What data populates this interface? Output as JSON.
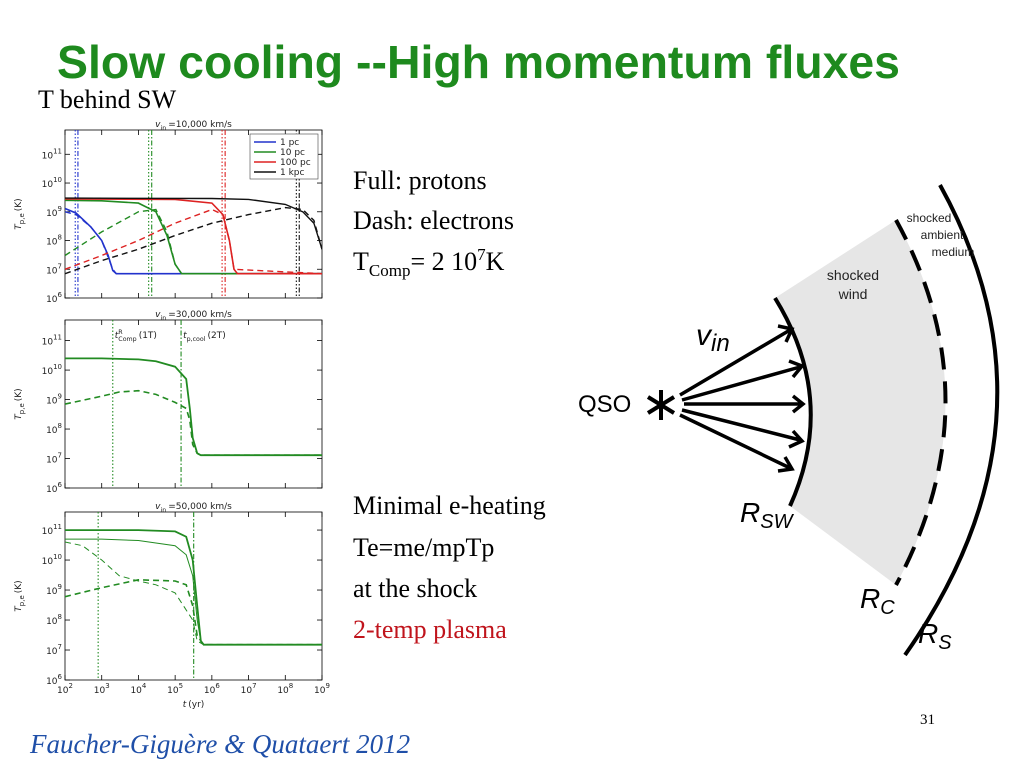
{
  "title": "Slow cooling --High momentum fluxes",
  "subtitle": "T behind SW",
  "chart_data": [
    {
      "type": "line",
      "xscale": "log",
      "yscale": "log",
      "title": {
        "symbol": "v",
        "subscript": "in",
        "text": "=10,000 km/s"
      },
      "ylabel": {
        "symbol": "T",
        "subscript": "p,e",
        "text": "(K)"
      },
      "xlim": [
        100,
        1000000000.0
      ],
      "ylim": [
        1000000.0,
        700000000000.0
      ],
      "xticks": [
        {
          "value": 100,
          "label": "10",
          "exponent": "2"
        },
        {
          "value": 1000,
          "label": "10",
          "exponent": "3"
        },
        {
          "value": 10000,
          "label": "10",
          "exponent": "4"
        },
        {
          "value": 100000,
          "label": "10",
          "exponent": "5"
        },
        {
          "value": 1000000,
          "label": "10",
          "exponent": "6"
        },
        {
          "value": 10000000,
          "label": "10",
          "exponent": "7"
        },
        {
          "value": 100000000,
          "label": "10",
          "exponent": "8"
        },
        {
          "value": 1000000000,
          "label": "10",
          "exponent": "9"
        }
      ],
      "show_xtick_labels": false,
      "yticks": [
        {
          "value": 1000000,
          "label": "10",
          "exponent": "6"
        },
        {
          "value": 10000000,
          "label": "10",
          "exponent": "7"
        },
        {
          "value": 100000000,
          "label": "10",
          "exponent": "8"
        },
        {
          "value": 1000000000,
          "label": "10",
          "exponent": "9"
        },
        {
          "value": 10000000000,
          "label": "10",
          "exponent": "10"
        },
        {
          "value": 100000000000,
          "label": "10",
          "exponent": "11"
        }
      ],
      "legend": "upper right",
      "series": [
        {
          "name": "1 pc",
          "color": "#2233cc",
          "style": "solid",
          "width": 1.6,
          "x": [
            100,
            200,
            500,
            1000,
            1500,
            2000,
            2500,
            1000000000.0
          ],
          "values": [
            1300000000.0,
            900000000.0,
            300000000.0,
            100000000.0,
            30000000.0,
            9000000.0,
            7000000.0,
            7000000.0
          ]
        },
        {
          "color": "#2233cc",
          "style": "dashed",
          "width": 1.4,
          "x": [
            100,
            200,
            500,
            1000,
            2000,
            2500,
            1000000000.0
          ],
          "values": [
            1000000000.0,
            800000000.0,
            300000000.0,
            100000000.0,
            10000000.0,
            7000000.0,
            7000000.0
          ]
        },
        {
          "name": "10 pc",
          "color": "#228b22",
          "style": "solid",
          "width": 1.6,
          "x": [
            100,
            1000,
            10000,
            30000,
            60000,
            100000,
            150000,
            200000,
            1000000000.0
          ],
          "values": [
            2500000000.0,
            2400000000.0,
            2000000000.0,
            1000000000.0,
            150000000.0,
            15000000.0,
            7000000.0,
            7000000.0,
            7000000.0
          ]
        },
        {
          "color": "#228b22",
          "style": "dashed",
          "width": 1.4,
          "x": [
            100,
            1000,
            10000,
            30000,
            60000,
            100000,
            150000,
            1000000000.0
          ],
          "values": [
            30000000.0,
            200000000.0,
            1000000000.0,
            1200000000.0,
            200000000.0,
            15000000.0,
            7000000.0,
            7000000.0
          ]
        },
        {
          "name": "100 pc",
          "color": "#dd2222",
          "style": "solid",
          "width": 1.6,
          "x": [
            100,
            100000,
            1000000,
            2000000,
            3000000,
            4000000,
            5000000,
            1000000000.0
          ],
          "values": [
            2800000000.0,
            2700000000.0,
            2000000000.0,
            800000000.0,
            100000000.0,
            10000000.0,
            7000000.0,
            7000000.0
          ]
        },
        {
          "color": "#dd2222",
          "style": "dashed",
          "width": 1.4,
          "x": [
            100,
            1000,
            10000,
            100000,
            1000000,
            2000000,
            3000000,
            4000000,
            1000000000.0
          ],
          "values": [
            10000000.0,
            30000000.0,
            100000000.0,
            400000000.0,
            1200000000.0,
            800000000.0,
            100000000.0,
            10000000.0,
            7000000.0
          ]
        },
        {
          "name": "1 kpc",
          "color": "#111111",
          "style": "solid",
          "width": 1.4,
          "x": [
            100,
            1000000,
            10000000,
            100000000,
            300000000,
            600000000,
            1000000000.0
          ],
          "values": [
            3000000000.0,
            2900000000.0,
            2700000000.0,
            1800000000.0,
            1000000000.0,
            400000000.0,
            50000000.0
          ]
        },
        {
          "color": "#111111",
          "style": "dashed",
          "width": 1.4,
          "x": [
            100,
            1000,
            10000,
            100000,
            1000000,
            10000000,
            100000000,
            300000000,
            600000000,
            1000000000.0
          ],
          "values": [
            7000000.0,
            20000000.0,
            50000000.0,
            150000000.0,
            400000000.0,
            800000000.0,
            1400000000.0,
            1200000000.0,
            500000000.0,
            50000000.0
          ]
        }
      ],
      "markers": [
        {
          "x": 190,
          "color": "#2233cc",
          "style": "dotted"
        },
        {
          "x": 225,
          "color": "#2233cc",
          "style": "dashdot"
        },
        {
          "x": 19000,
          "color": "#228b22",
          "style": "dotted"
        },
        {
          "x": 23000,
          "color": "#228b22",
          "style": "dashdot"
        },
        {
          "x": 1900000,
          "color": "#dd2222",
          "style": "dotted"
        },
        {
          "x": 2300000,
          "color": "#dd2222",
          "style": "dashdot"
        },
        {
          "x": 200000000,
          "color": "#111111",
          "style": "dotted"
        },
        {
          "x": 240000000,
          "color": "#111111",
          "style": "dashdot"
        }
      ]
    },
    {
      "type": "line",
      "xscale": "log",
      "yscale": "log",
      "title": {
        "symbol": "v",
        "subscript": "in",
        "text": "=30,000 km/s"
      },
      "ylabel": {
        "symbol": "T",
        "subscript": "p,e",
        "text": "(K)"
      },
      "xlim": [
        100,
        1000000000.0
      ],
      "ylim": [
        1000000.0,
        500000000000.0
      ],
      "xticks": [
        {
          "value": 100,
          "label": "10",
          "exponent": "2"
        },
        {
          "value": 1000,
          "label": "10",
          "exponent": "3"
        },
        {
          "value": 10000,
          "label": "10",
          "exponent": "4"
        },
        {
          "value": 100000,
          "label": "10",
          "exponent": "5"
        },
        {
          "value": 1000000,
          "label": "10",
          "exponent": "6"
        },
        {
          "value": 10000000,
          "label": "10",
          "exponent": "7"
        },
        {
          "value": 100000000,
          "label": "10",
          "exponent": "8"
        },
        {
          "value": 1000000000,
          "label": "10",
          "exponent": "9"
        }
      ],
      "show_xtick_labels": false,
      "yticks": [
        {
          "value": 1000000,
          "label": "10",
          "exponent": "6"
        },
        {
          "value": 10000000,
          "label": "10",
          "exponent": "7"
        },
        {
          "value": 100000000,
          "label": "10",
          "exponent": "8"
        },
        {
          "value": 1000000000,
          "label": "10",
          "exponent": "9"
        },
        {
          "value": 10000000000,
          "label": "10",
          "exponent": "10"
        },
        {
          "value": 100000000000,
          "label": "10",
          "exponent": "11"
        }
      ],
      "series": [
        {
          "color": "#228b22",
          "style": "solid",
          "width": 1.8,
          "x": [
            100,
            1000,
            10000,
            30000,
            100000,
            200000,
            250000,
            300000,
            400000,
            500000,
            1000000000.0
          ],
          "values": [
            25000000000.0,
            25000000000.0,
            23000000000.0,
            20000000000.0,
            13000000000.0,
            5000000000.0,
            500000000.0,
            50000000.0,
            15000000.0,
            13000000.0,
            13000000.0
          ]
        },
        {
          "color": "#228b22",
          "style": "dashed",
          "width": 1.6,
          "x": [
            100,
            1000,
            3000,
            10000,
            30000,
            100000,
            200000,
            250000,
            300000,
            400000,
            500000,
            1000000000.0
          ],
          "values": [
            700000000.0,
            1300000000.0,
            1800000000.0,
            2000000000.0,
            1500000000.0,
            800000000.0,
            500000000.0,
            200000000.0,
            30000000.0,
            15000000.0,
            13000000.0,
            13000000.0
          ]
        }
      ],
      "markers": [
        {
          "x": 2000,
          "color": "#228b22",
          "style": "dotted"
        },
        {
          "x": 145000,
          "color": "#228b22",
          "style": "dashdot"
        }
      ],
      "annotations": [
        {
          "x": 2000,
          "symbol": "t",
          "superscript": "R",
          "subscript": "Comp",
          "text": "(1T)"
        },
        {
          "x": 145000,
          "symbol": "t",
          "subscript": "p,cool",
          "text": "(2T)"
        }
      ]
    },
    {
      "type": "line",
      "xscale": "log",
      "yscale": "log",
      "title": {
        "symbol": "v",
        "subscript": "in",
        "text": "=50,000 km/s"
      },
      "ylabel": {
        "symbol": "T",
        "subscript": "p,e",
        "text": "(K)"
      },
      "xlabel": {
        "symbol": "t",
        "text": "(yr)"
      },
      "xlim": [
        100,
        1000000000.0
      ],
      "ylim": [
        1000000.0,
        400000000000.0
      ],
      "xticks": [
        {
          "value": 100,
          "label": "10",
          "exponent": "2"
        },
        {
          "value": 1000,
          "label": "10",
          "exponent": "3"
        },
        {
          "value": 10000,
          "label": "10",
          "exponent": "4"
        },
        {
          "value": 100000,
          "label": "10",
          "exponent": "5"
        },
        {
          "value": 1000000,
          "label": "10",
          "exponent": "6"
        },
        {
          "value": 10000000,
          "label": "10",
          "exponent": "7"
        },
        {
          "value": 100000000,
          "label": "10",
          "exponent": "8"
        },
        {
          "value": 1000000000,
          "label": "10",
          "exponent": "9"
        }
      ],
      "show_xtick_labels": true,
      "yticks": [
        {
          "value": 1000000,
          "label": "10",
          "exponent": "6"
        },
        {
          "value": 10000000,
          "label": "10",
          "exponent": "7"
        },
        {
          "value": 100000000,
          "label": "10",
          "exponent": "8"
        },
        {
          "value": 1000000000,
          "label": "10",
          "exponent": "9"
        },
        {
          "value": 10000000000,
          "label": "10",
          "exponent": "10"
        },
        {
          "value": 100000000000,
          "label": "10",
          "exponent": "11"
        }
      ],
      "series": [
        {
          "color": "#228b22",
          "style": "solid",
          "width": 1.8,
          "x": [
            100,
            10000,
            100000,
            200000,
            300000,
            400000,
            500000,
            600000,
            1000000000.0
          ],
          "values": [
            100000000000.0,
            100000000000.0,
            90000000000.0,
            60000000000.0,
            10000000000.0,
            300000000.0,
            20000000.0,
            15000000.0,
            15000000.0
          ]
        },
        {
          "color": "#228b22",
          "style": "solid",
          "width": 1,
          "x": [
            100,
            1000,
            10000,
            100000,
            200000,
            300000,
            400000,
            500000,
            600000,
            1000000000.0
          ],
          "values": [
            50000000000.0,
            50000000000.0,
            45000000000.0,
            30000000000.0,
            15000000000.0,
            3000000000.0,
            100000000.0,
            20000000.0,
            15000000.0,
            15000000.0
          ]
        },
        {
          "color": "#228b22",
          "style": "dashed",
          "width": 1,
          "x": [
            100,
            300,
            1000,
            3000,
            10000,
            30000,
            100000,
            300000,
            400000,
            600000,
            1000000000.0
          ],
          "values": [
            40000000000.0,
            30000000000.0,
            10000000000.0,
            3000000000.0,
            2000000000.0,
            1500000000.0,
            800000000.0,
            100000000.0,
            20000000.0,
            15000000.0,
            15000000.0
          ]
        },
        {
          "color": "#228b22",
          "style": "dashed",
          "width": 1.6,
          "x": [
            100,
            1000,
            10000,
            100000,
            200000,
            300000,
            400000,
            600000,
            1000000000.0
          ],
          "values": [
            600000000.0,
            1200000000.0,
            2200000000.0,
            2000000000.0,
            1500000000.0,
            300000000.0,
            30000000.0,
            15000000.0,
            15000000.0
          ]
        }
      ],
      "markers": [
        {
          "x": 800,
          "color": "#228b22",
          "style": "dotted"
        },
        {
          "x": 320000,
          "color": "#228b22",
          "style": "dashdot"
        }
      ]
    }
  ],
  "notes": {
    "full": "Full: protons",
    "dash": "Dash: electrons",
    "tcomp": {
      "symbol": "T",
      "subscript": "Comp",
      "text": "= 2 10",
      "superscript": "7",
      "tail": "K"
    },
    "lines": [
      "Minimal e-heating",
      "Te=me/mpTp",
      "at the shock"
    ],
    "highlight": "2-temp plasma"
  },
  "diagram": {
    "source": "QSO",
    "velocity": {
      "symbol": "v",
      "subscript": "in"
    },
    "rsw": {
      "symbol": "R",
      "subscript": "SW"
    },
    "rc": {
      "symbol": "R",
      "subscript": "C"
    },
    "rs": {
      "symbol": "R",
      "subscript": "S"
    },
    "wind": [
      "shocked",
      "wind"
    ],
    "ambient": [
      "shocked",
      "ambient",
      "medium"
    ]
  },
  "footer": {
    "citation": "Faucher-Giguère & Quataert 2012",
    "page": "31"
  }
}
